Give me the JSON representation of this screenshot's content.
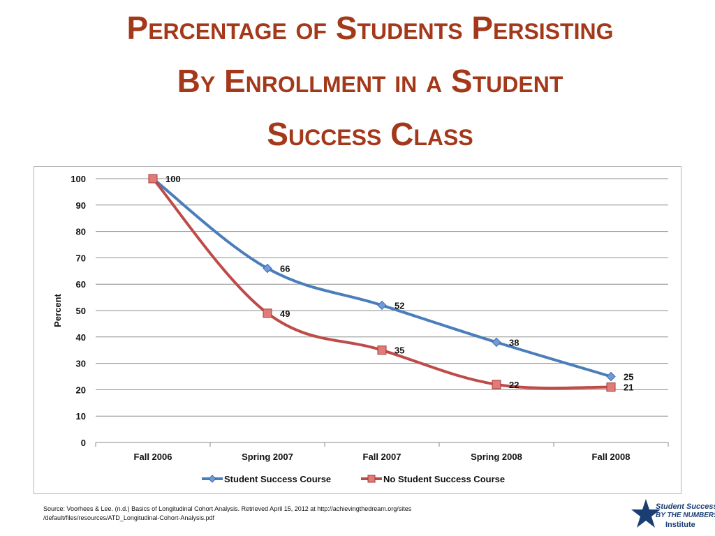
{
  "title": {
    "line1": "Percentage of Students Persisting",
    "line2": "By Enrollment in a Student",
    "line3": "Success Class"
  },
  "source": {
    "line1": "Source:  Voorhees & Lee. (n.d.)  Basics of Longitudinal Cohort Analysis.  Retrieved April 15, 2012 at http://achievingthedream.org/sites",
    "line2": "/default/files/resources/ATD_Longitudinal-Cohort-Analysis.pdf"
  },
  "logo": {
    "line1": "Student Success",
    "line2": "BY THE NUMBERS",
    "line3": "Institute",
    "icon": "star-icon",
    "color": "#1a3d74"
  },
  "colors": {
    "title": "#a4381a",
    "series_blue": "#4a7ebb",
    "series_red": "#be4b48"
  },
  "chart_data": {
    "type": "line",
    "title": "",
    "xlabel": "",
    "ylabel": "Percent",
    "ylim": [
      0,
      100
    ],
    "yticks": [
      0,
      10,
      20,
      30,
      40,
      50,
      60,
      70,
      80,
      90,
      100
    ],
    "grid": true,
    "legend_position": "bottom",
    "categories": [
      "Fall 2006",
      "Spring 2007",
      "Fall 2007",
      "Spring 2008",
      "Fall 2008"
    ],
    "series": [
      {
        "name": "Student Success Course",
        "values": [
          100,
          66,
          52,
          38,
          25
        ],
        "color": "#4a7ebb",
        "marker": "diamond"
      },
      {
        "name": "No Student Success Course",
        "values": [
          100,
          49,
          35,
          22,
          21
        ],
        "color": "#be4b48",
        "marker": "square"
      }
    ],
    "data_labels": [
      {
        "series": 1,
        "index": 0,
        "text": "100"
      },
      {
        "series": 0,
        "index": 1,
        "text": "66"
      },
      {
        "series": 1,
        "index": 1,
        "text": "49"
      },
      {
        "series": 0,
        "index": 2,
        "text": "52"
      },
      {
        "series": 1,
        "index": 2,
        "text": "35"
      },
      {
        "series": 0,
        "index": 3,
        "text": "38"
      },
      {
        "series": 1,
        "index": 3,
        "text": "22"
      },
      {
        "series": 0,
        "index": 4,
        "text": "25"
      },
      {
        "series": 1,
        "index": 4,
        "text": "21"
      }
    ]
  }
}
